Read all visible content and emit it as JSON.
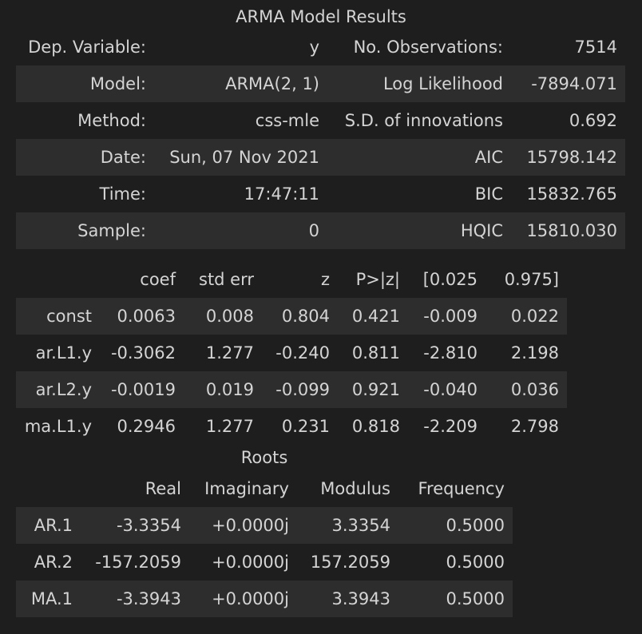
{
  "summary": {
    "title": "ARMA Model Results",
    "rows": [
      [
        "Dep. Variable:",
        "y",
        "No. Observations:",
        "7514"
      ],
      [
        "Model:",
        "ARMA(2, 1)",
        "Log Likelihood",
        "-7894.071"
      ],
      [
        "Method:",
        "css-mle",
        "S.D. of innovations",
        "0.692"
      ],
      [
        "Date:",
        "Sun, 07 Nov 2021",
        "AIC",
        "15798.142"
      ],
      [
        "Time:",
        "17:47:11",
        "BIC",
        "15832.765"
      ],
      [
        "Sample:",
        "0",
        "HQIC",
        "15810.030"
      ]
    ]
  },
  "coefficients": {
    "headers": [
      "",
      "coef",
      "std err",
      "z",
      "P>|z|",
      "[0.025",
      "0.975]"
    ],
    "rows": [
      [
        "const",
        "0.0063",
        "0.008",
        "0.804",
        "0.421",
        "-0.009",
        "0.022"
      ],
      [
        "ar.L1.y",
        "-0.3062",
        "1.277",
        "-0.240",
        "0.811",
        "-2.810",
        "2.198"
      ],
      [
        "ar.L2.y",
        "-0.0019",
        "0.019",
        "-0.099",
        "0.921",
        "-0.040",
        "0.036"
      ],
      [
        "ma.L1.y",
        "0.2946",
        "1.277",
        "0.231",
        "0.818",
        "-2.209",
        "2.798"
      ]
    ]
  },
  "roots": {
    "title": "Roots",
    "headers": [
      "",
      "Real",
      "Imaginary",
      "Modulus",
      "Frequency"
    ],
    "rows": [
      [
        "AR.1",
        "-3.3354",
        "+0.0000j",
        "3.3354",
        "0.5000"
      ],
      [
        "AR.2",
        "-157.2059",
        "+0.0000j",
        "157.2059",
        "0.5000"
      ],
      [
        "MA.1",
        "-3.3943",
        "+0.0000j",
        "3.3943",
        "0.5000"
      ]
    ]
  }
}
